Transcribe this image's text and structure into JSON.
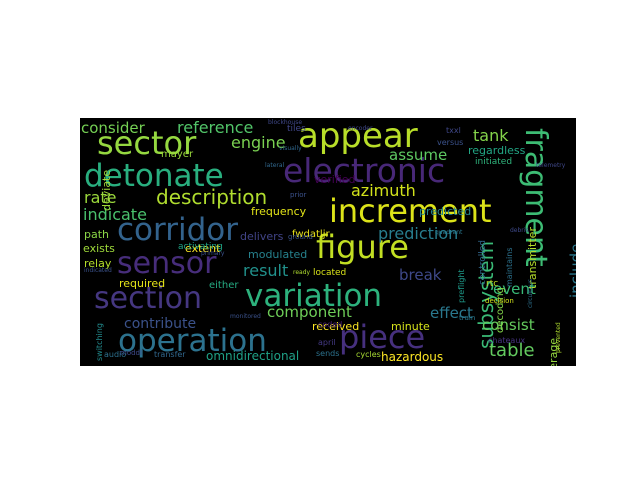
{
  "word_cloud": {
    "background": "#000000",
    "words": [
      {
        "text": "appear",
        "color": "#b8de29"
      },
      {
        "text": "sector",
        "color": "#95d840"
      },
      {
        "text": "electronic",
        "color": "#482878"
      },
      {
        "text": "detonate",
        "color": "#29af7f"
      },
      {
        "text": "increment",
        "color": "#dce319"
      },
      {
        "text": "fragment",
        "color": "#3dbc74"
      },
      {
        "text": "corridor",
        "color": "#33638d"
      },
      {
        "text": "figure",
        "color": "#c2df23"
      },
      {
        "text": "sensor",
        "color": "#472d7b"
      },
      {
        "text": "variation",
        "color": "#2db27d"
      },
      {
        "text": "section",
        "color": "#453781"
      },
      {
        "text": "operation",
        "color": "#2c728e"
      },
      {
        "text": "piece",
        "color": "#46307e"
      },
      {
        "text": "description",
        "color": "#b0dd2f"
      },
      {
        "text": "subsystem",
        "color": "#3aba76"
      },
      {
        "text": "consider",
        "color": "#75d054"
      },
      {
        "text": "reference",
        "color": "#52c569"
      },
      {
        "text": "engine",
        "color": "#7ad151"
      },
      {
        "text": "assume",
        "color": "#5ec962"
      },
      {
        "text": "tank",
        "color": "#84d44b"
      },
      {
        "text": "rate",
        "color": "#9bd93c"
      },
      {
        "text": "azimuth",
        "color": "#d2e21b"
      },
      {
        "text": "indicate",
        "color": "#4ac16d"
      },
      {
        "text": "prediction",
        "color": "#287d8e"
      },
      {
        "text": "include",
        "color": "#2a788e"
      },
      {
        "text": "system",
        "color": "#1f988b"
      },
      {
        "text": "break",
        "color": "#3e4989"
      },
      {
        "text": "result",
        "color": "#21918c"
      },
      {
        "text": "event",
        "color": "#38b977"
      },
      {
        "text": "component",
        "color": "#6ece58"
      },
      {
        "text": "effect",
        "color": "#2a788e"
      },
      {
        "text": "consist",
        "color": "#65cb5e"
      },
      {
        "text": "table",
        "color": "#63cb5f"
      },
      {
        "text": "contribute",
        "color": "#3b528b"
      },
      {
        "text": "omnidirectional",
        "color": "#1fa187"
      },
      {
        "text": "hazardous",
        "color": "#fde725"
      },
      {
        "text": "minute",
        "color": "#d5e21a"
      },
      {
        "text": "received",
        "color": "#fde725"
      },
      {
        "text": "frequency",
        "color": "#e2e418"
      },
      {
        "text": "predicted",
        "color": "#25858e"
      },
      {
        "text": "coverage",
        "color": "#95d840"
      },
      {
        "text": "transmitter",
        "color": "#b5de2b"
      },
      {
        "text": "modulated",
        "color": "#26828e"
      },
      {
        "text": "required",
        "color": "#e5e419"
      },
      {
        "text": "delivers",
        "color": "#414487"
      },
      {
        "text": "extent",
        "color": "#fde725"
      },
      {
        "text": "deviate",
        "color": "#a0da39"
      },
      {
        "text": "path",
        "color": "#8bd646"
      },
      {
        "text": "exists",
        "color": "#9fda3a"
      },
      {
        "text": "relay",
        "color": "#b5de2b"
      },
      {
        "text": "verified",
        "color": "#440154"
      },
      {
        "text": "regardless",
        "color": "#22a785"
      },
      {
        "text": "initiated",
        "color": "#2fb47c"
      },
      {
        "text": "decoding",
        "color": "#84d44b"
      },
      {
        "text": "controlled",
        "color": "#31688e"
      },
      {
        "text": "fwdatljr",
        "color": "#eae51a"
      },
      {
        "text": "mayer",
        "color": "#9bd93c"
      },
      {
        "text": "located",
        "color": "#d8e219"
      },
      {
        "text": "either",
        "color": "#25ab82"
      },
      {
        "text": "activating",
        "color": "#20a486"
      },
      {
        "text": "coded",
        "color": "#482173"
      },
      {
        "text": "april",
        "color": "#443983"
      },
      {
        "text": "sends",
        "color": "#2c728e"
      },
      {
        "text": "transfer",
        "color": "#31688e"
      },
      {
        "text": "cycles",
        "color": "#a8db34"
      },
      {
        "text": "audio",
        "color": "#2d708e"
      },
      {
        "text": "switching",
        "color": "#238a8d"
      },
      {
        "text": "rtc",
        "color": "#bddf26"
      },
      {
        "text": "decision",
        "color": "#d2e21b"
      },
      {
        "text": "maintains",
        "color": "#2c728e"
      },
      {
        "text": "chateaux",
        "color": "#46327e"
      },
      {
        "text": "preflight",
        "color": "#1e9b8a"
      },
      {
        "text": "tiles",
        "color": "#404688"
      },
      {
        "text": "versus",
        "color": "#3b528b"
      },
      {
        "text": "txxl",
        "color": "#3f4788"
      },
      {
        "text": "ready",
        "color": "#b0dd2f"
      },
      {
        "text": "train",
        "color": "#2a788e"
      },
      {
        "text": "prior",
        "color": "#3b528b"
      },
      {
        "text": "moddl",
        "color": "#3e4989"
      },
      {
        "text": "ground",
        "color": "#3b528b"
      },
      {
        "text": "blockhouse",
        "color": "#3f4889"
      },
      {
        "text": "visually",
        "color": "#31688e"
      },
      {
        "text": "monitored",
        "color": "#3b528b"
      },
      {
        "text": "indicated",
        "color": "#3b528b"
      },
      {
        "text": "lateral",
        "color": "#31688e"
      },
      {
        "text": "prevented",
        "color": "#b0dd2f"
      },
      {
        "text": "circuitous",
        "color": "#2d708e"
      },
      {
        "text": "quadrant",
        "color": "#2a788e"
      },
      {
        "text": "telemetry",
        "color": "#3f4889"
      },
      {
        "text": "debris",
        "color": "#3e4989"
      },
      {
        "text": "primary",
        "color": "#3b528b"
      },
      {
        "text": "encoder",
        "color": "#3f4889"
      }
    ]
  }
}
